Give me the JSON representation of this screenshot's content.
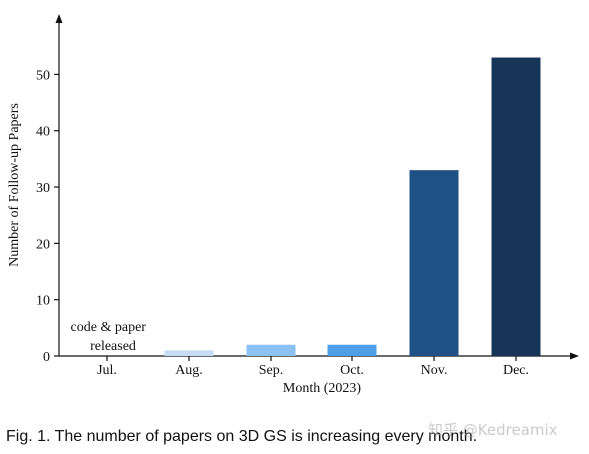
{
  "chart_data": {
    "type": "bar",
    "categories": [
      "Jul.",
      "Aug.",
      "Sep.",
      "Oct.",
      "Nov.",
      "Dec."
    ],
    "values": [
      0,
      1,
      2,
      2,
      33,
      53
    ],
    "colors": [
      "#c6dcf2",
      "#c6dcf2",
      "#8bc2f3",
      "#4f9ee8",
      "#1f5086",
      "#173559"
    ],
    "xlabel": "Month (2023)",
    "ylabel": "Number of Follow-up Papers",
    "ylim": [
      0,
      57
    ],
    "yticks": [
      0,
      10,
      20,
      30,
      40,
      50
    ],
    "grid": false,
    "annotation": {
      "category": "Jul.",
      "lines": [
        "code & paper",
        "released"
      ]
    }
  },
  "caption": "Fig. 1. The number of papers on 3D GS is increasing every month.",
  "watermark": "知乎 @Kedreamix"
}
